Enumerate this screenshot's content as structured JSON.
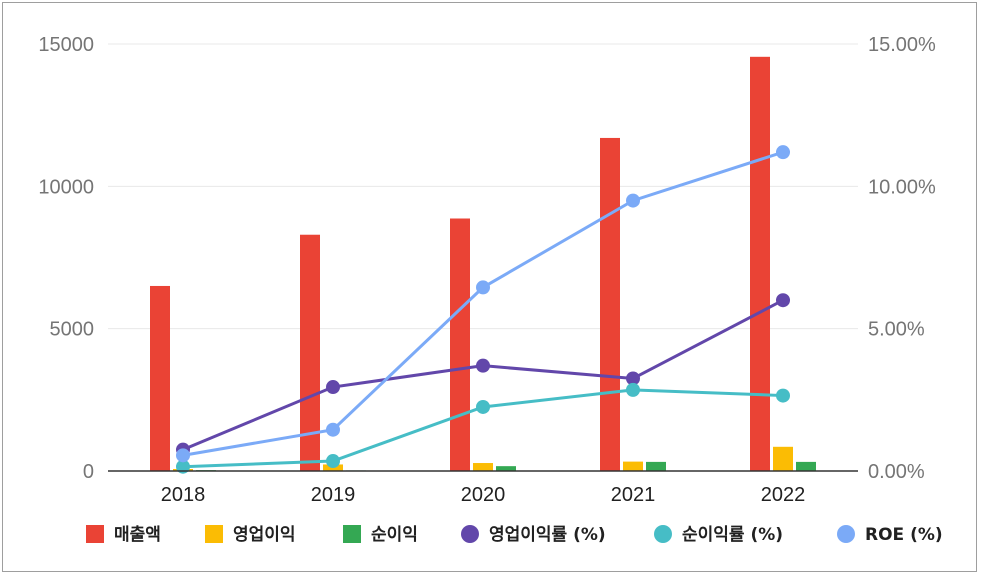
{
  "chart_data": {
    "type": "bar",
    "categories": [
      "2018",
      "2019",
      "2020",
      "2021",
      "2022"
    ],
    "y_left": {
      "ticks": [
        "0",
        "5000",
        "10000",
        "15000"
      ],
      "ylim": [
        0,
        15000
      ]
    },
    "y_right": {
      "ticks": [
        "0.00%",
        "5.00%",
        "10.00%",
        "15.00%"
      ],
      "ylim": [
        0,
        15
      ]
    },
    "bar_series": [
      {
        "name": "매출액",
        "color": "#EA4335",
        "values": [
          6500,
          8300,
          8870,
          11700,
          14550
        ]
      },
      {
        "name": "영업이익",
        "color": "#FBBC04",
        "values": [
          70,
          230,
          280,
          330,
          850
        ]
      },
      {
        "name": "순이익",
        "color": "#34A853",
        "values": [
          30,
          20,
          170,
          320,
          320
        ]
      }
    ],
    "line_series": [
      {
        "name": "영업이익률 (%)",
        "color": "#6247AA",
        "values": [
          0.75,
          2.95,
          3.7,
          3.25,
          6.0
        ]
      },
      {
        "name": "순이익률 (%)",
        "color": "#46BDC6",
        "values": [
          0.15,
          0.35,
          2.25,
          2.85,
          2.65
        ]
      },
      {
        "name": "ROE (%)",
        "color": "#7BAAF7",
        "values": [
          0.55,
          1.45,
          6.45,
          9.5,
          11.2
        ]
      }
    ],
    "grid": true,
    "legend_position": "bottom"
  }
}
